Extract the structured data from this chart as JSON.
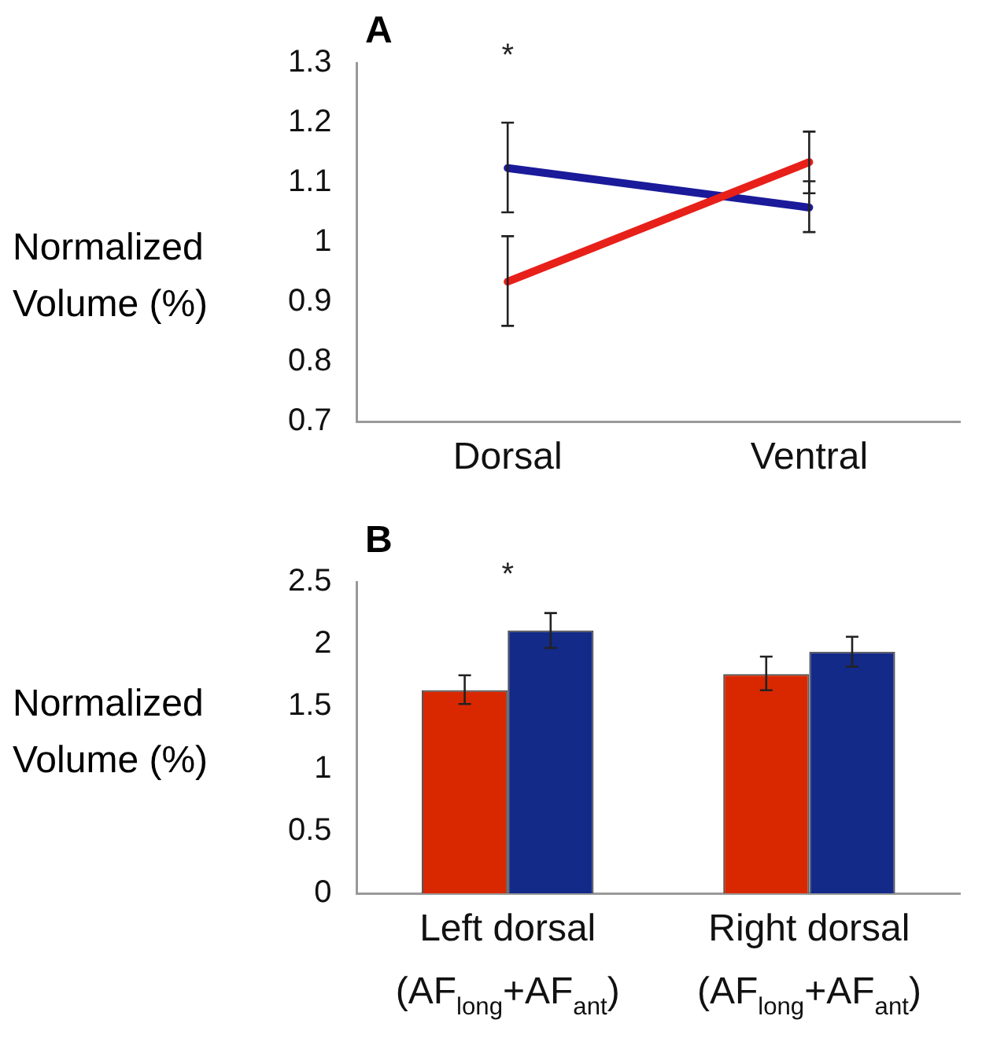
{
  "chart_data": [
    {
      "type": "line",
      "title": "A",
      "ylabel": "Normalized Volume (%)",
      "categories": [
        "Dorsal",
        "Ventral"
      ],
      "series": [
        {
          "color": "#e8201a",
          "values": [
            0.934,
            1.134
          ],
          "errors": [
            [
              0.86,
              1.01
            ],
            [
              1.082,
              1.185
            ]
          ]
        },
        {
          "color": "#1a1a9a",
          "values": [
            1.124,
            1.058
          ],
          "errors": [
            [
              1.05,
              1.2
            ],
            [
              1.017,
              1.102
            ]
          ]
        }
      ],
      "ylim": [
        0.7,
        1.3
      ],
      "yticks": [
        0.7,
        0.8,
        0.9,
        1,
        1.1,
        1.2,
        1.3
      ],
      "grid": false,
      "legend": false,
      "marker": "none",
      "line_style": "solid",
      "annotations": [
        "*"
      ]
    },
    {
      "type": "bar",
      "title": "B",
      "ylabel": "Normalized Volume (%)",
      "categories": [
        "Left dorsal\n(AF$_{long}$+AF$_{ant}$)",
        "Right dorsal\n(AF$_{long}$+AF$_{ant}$)"
      ],
      "series": [
        {
          "color": "#d92800",
          "values": [
            1.63,
            1.76
          ],
          "errors": [
            [
              1.52,
              1.75
            ],
            [
              1.63,
              1.9
            ]
          ]
        },
        {
          "color": "#132a88",
          "values": [
            2.11,
            1.94
          ],
          "errors": [
            [
              1.97,
              2.25
            ],
            [
              1.82,
              2.06
            ]
          ]
        }
      ],
      "ylim": [
        0,
        2.5
      ],
      "yticks": [
        0,
        0.5,
        1,
        1.5,
        2,
        2.5
      ],
      "grid": false,
      "legend": false,
      "annotations": [
        "*"
      ]
    }
  ]
}
